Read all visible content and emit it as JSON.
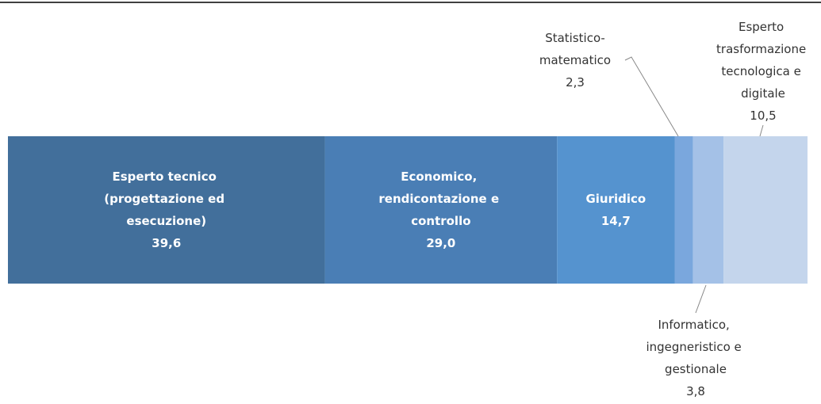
{
  "chart_data": {
    "type": "stacked-bar",
    "series": [
      {
        "name": "Esperto tecnico (progettazione ed esecuzione)",
        "color": "#426f9b",
        "values": [
          39.6
        ],
        "value_labels": [
          "39,6"
        ]
      },
      {
        "name": "Economico, rendicontazione e controllo",
        "color": "#4a7eb5",
        "values": [
          29.0
        ],
        "value_labels": [
          "29,0"
        ]
      },
      {
        "name": "Giuridico",
        "color": "#5593cf",
        "values": [
          14.7
        ],
        "value_labels": [
          "14,7"
        ]
      },
      {
        "name": "Statistico-matematico",
        "color": "#7aa7dd",
        "values": [
          2.3
        ],
        "value_labels": [
          "2,3"
        ]
      },
      {
        "name": "Informatico, ingegneristico e gestionale",
        "color": "#a4c1e7",
        "values": [
          3.8
        ],
        "value_labels": [
          "3,8"
        ]
      },
      {
        "name": "Esperto trasformazione tecnologica e digitale",
        "color": "#c4d5ec",
        "values": [
          10.5
        ],
        "value_labels": [
          "10,5"
        ]
      }
    ]
  }
}
